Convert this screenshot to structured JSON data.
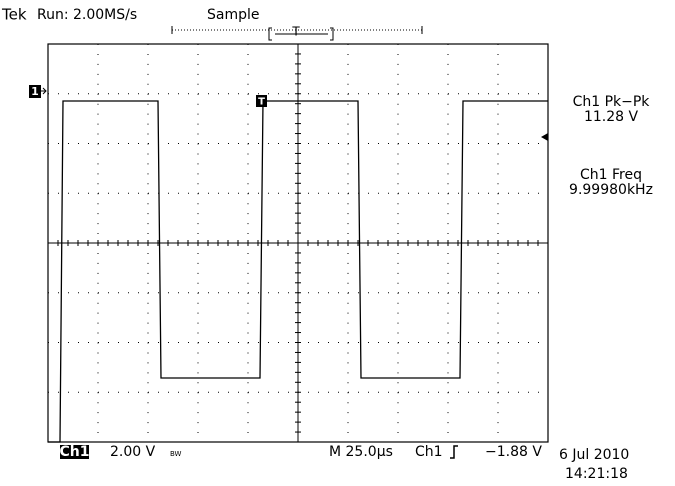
{
  "header": {
    "brand": "Tek",
    "run": "Run: 2.00MS/s",
    "mode": "Sample",
    "trigger_marker": "T"
  },
  "markers": {
    "channel": "1",
    "trigger": "T"
  },
  "measurements": [
    {
      "label": "Ch1 Pk−Pk",
      "value": "11.28 V"
    },
    {
      "label": "Ch1 Freq",
      "value": "9.99980kHz"
    }
  ],
  "footer": {
    "channel": "Ch1",
    "volts_per_div": "2.00 V",
    "bandwidth": "BW",
    "timebase": "M 25.0µs",
    "trigger_source": "Ch1",
    "trigger_level": "−1.88 V",
    "date": "6 Jul 2010",
    "time": "14:21:18"
  }
}
